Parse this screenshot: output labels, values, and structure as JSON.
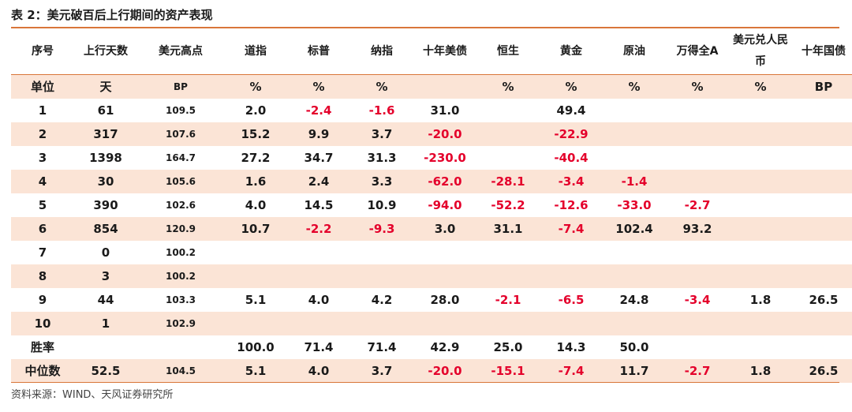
{
  "title": "表 2：美元破百后上行期间的资产表现",
  "columns": [
    "序号",
    "上行天数",
    "美元高点",
    "道指",
    "标普",
    "纳指",
    "十年美债",
    "恒生",
    "黄金",
    "原油",
    "万得全A",
    "美元兑人民币",
    "十年国债"
  ],
  "units": [
    "单位",
    "天",
    "BP",
    "%",
    "%",
    "%",
    "",
    "%",
    "%",
    "%",
    "%",
    "%",
    "BP"
  ],
  "rows": [
    [
      "1",
      "61",
      "109.5",
      "2.0",
      "-2.4",
      "-1.6",
      "31.0",
      "",
      "49.4",
      "",
      "",
      "",
      ""
    ],
    [
      "2",
      "317",
      "107.6",
      "15.2",
      "9.9",
      "3.7",
      "-20.0",
      "",
      "-22.9",
      "",
      "",
      "",
      ""
    ],
    [
      "3",
      "1398",
      "164.7",
      "27.2",
      "34.7",
      "31.3",
      "-230.0",
      "",
      "-40.4",
      "",
      "",
      "",
      ""
    ],
    [
      "4",
      "30",
      "105.6",
      "1.6",
      "2.4",
      "3.3",
      "-62.0",
      "-28.1",
      "-3.4",
      "-1.4",
      "",
      "",
      ""
    ],
    [
      "5",
      "390",
      "102.6",
      "4.0",
      "14.5",
      "10.9",
      "-94.0",
      "-52.2",
      "-12.6",
      "-33.0",
      "-2.7",
      "",
      ""
    ],
    [
      "6",
      "854",
      "120.9",
      "10.7",
      "-2.2",
      "-9.3",
      "3.0",
      "31.1",
      "-7.4",
      "102.4",
      "93.2",
      "",
      ""
    ],
    [
      "7",
      "0",
      "100.2",
      "",
      "",
      "",
      "",
      "",
      "",
      "",
      "",
      "",
      ""
    ],
    [
      "8",
      "3",
      "100.2",
      "",
      "",
      "",
      "",
      "",
      "",
      "",
      "",
      "",
      ""
    ],
    [
      "9",
      "44",
      "103.3",
      "5.1",
      "4.0",
      "4.2",
      "28.0",
      "-2.1",
      "-6.5",
      "24.8",
      "-3.4",
      "1.8",
      "26.5"
    ],
    [
      "10",
      "1",
      "102.9",
      "",
      "",
      "",
      "",
      "",
      "",
      "",
      "",
      "",
      ""
    ],
    [
      "胜率",
      "",
      "",
      "100.0",
      "71.4",
      "71.4",
      "42.9",
      "25.0",
      "14.3",
      "50.0",
      "",
      "",
      ""
    ],
    [
      "中位数",
      "52.5",
      "104.5",
      "5.1",
      "4.0",
      "3.7",
      "-20.0",
      "-15.1",
      "-7.4",
      "11.7",
      "-2.7",
      "1.8",
      "26.5"
    ]
  ],
  "source": "资料来源：WIND、天风证券研究所",
  "colors": {
    "accent": "#d9763a",
    "shade": "#fbe4d6",
    "negative": "#e4002b"
  }
}
